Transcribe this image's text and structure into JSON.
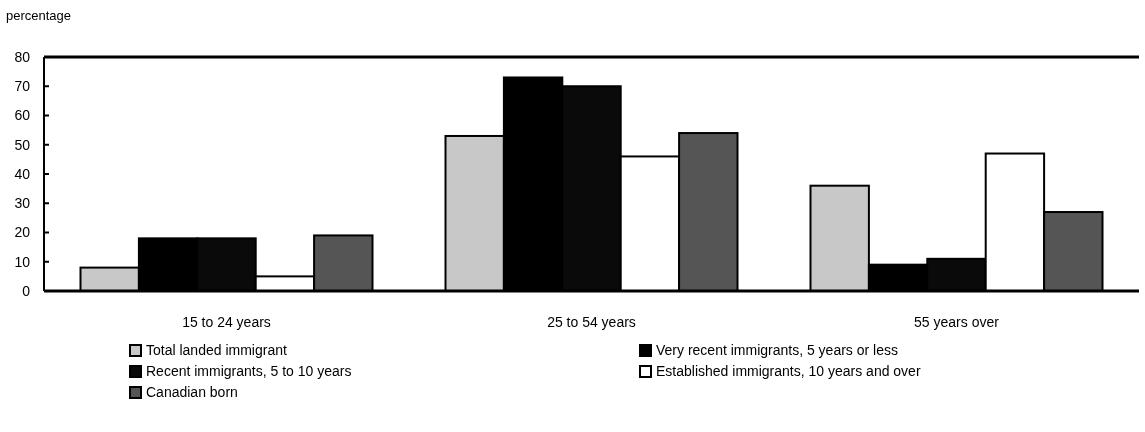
{
  "chart_data": {
    "type": "bar",
    "ylabel": "percentage",
    "categories": [
      "15 to 24 years",
      "25 to 54 years",
      "55 years over"
    ],
    "series": [
      {
        "name": "Total landed immigrant",
        "color": "#c8c8c8",
        "values": [
          8,
          53,
          36
        ]
      },
      {
        "name": "Very recent immigrants, 5 years or less",
        "color": "#000000",
        "values": [
          18,
          73,
          9
        ]
      },
      {
        "name": "Recent immigrants, 5 to 10 years",
        "color": "#0a0a0a",
        "values": [
          18,
          70,
          11
        ]
      },
      {
        "name": "Established immigrants, 10 years and over",
        "color": "#ffffff",
        "values": [
          5,
          46,
          47
        ]
      },
      {
        "name": "Canadian born",
        "color": "#555555",
        "values": [
          19,
          54,
          27
        ]
      }
    ],
    "ylim": [
      0,
      80
    ],
    "yticks": [
      0,
      10,
      20,
      30,
      40,
      50,
      60,
      70,
      80
    ],
    "legend": "bottom"
  }
}
